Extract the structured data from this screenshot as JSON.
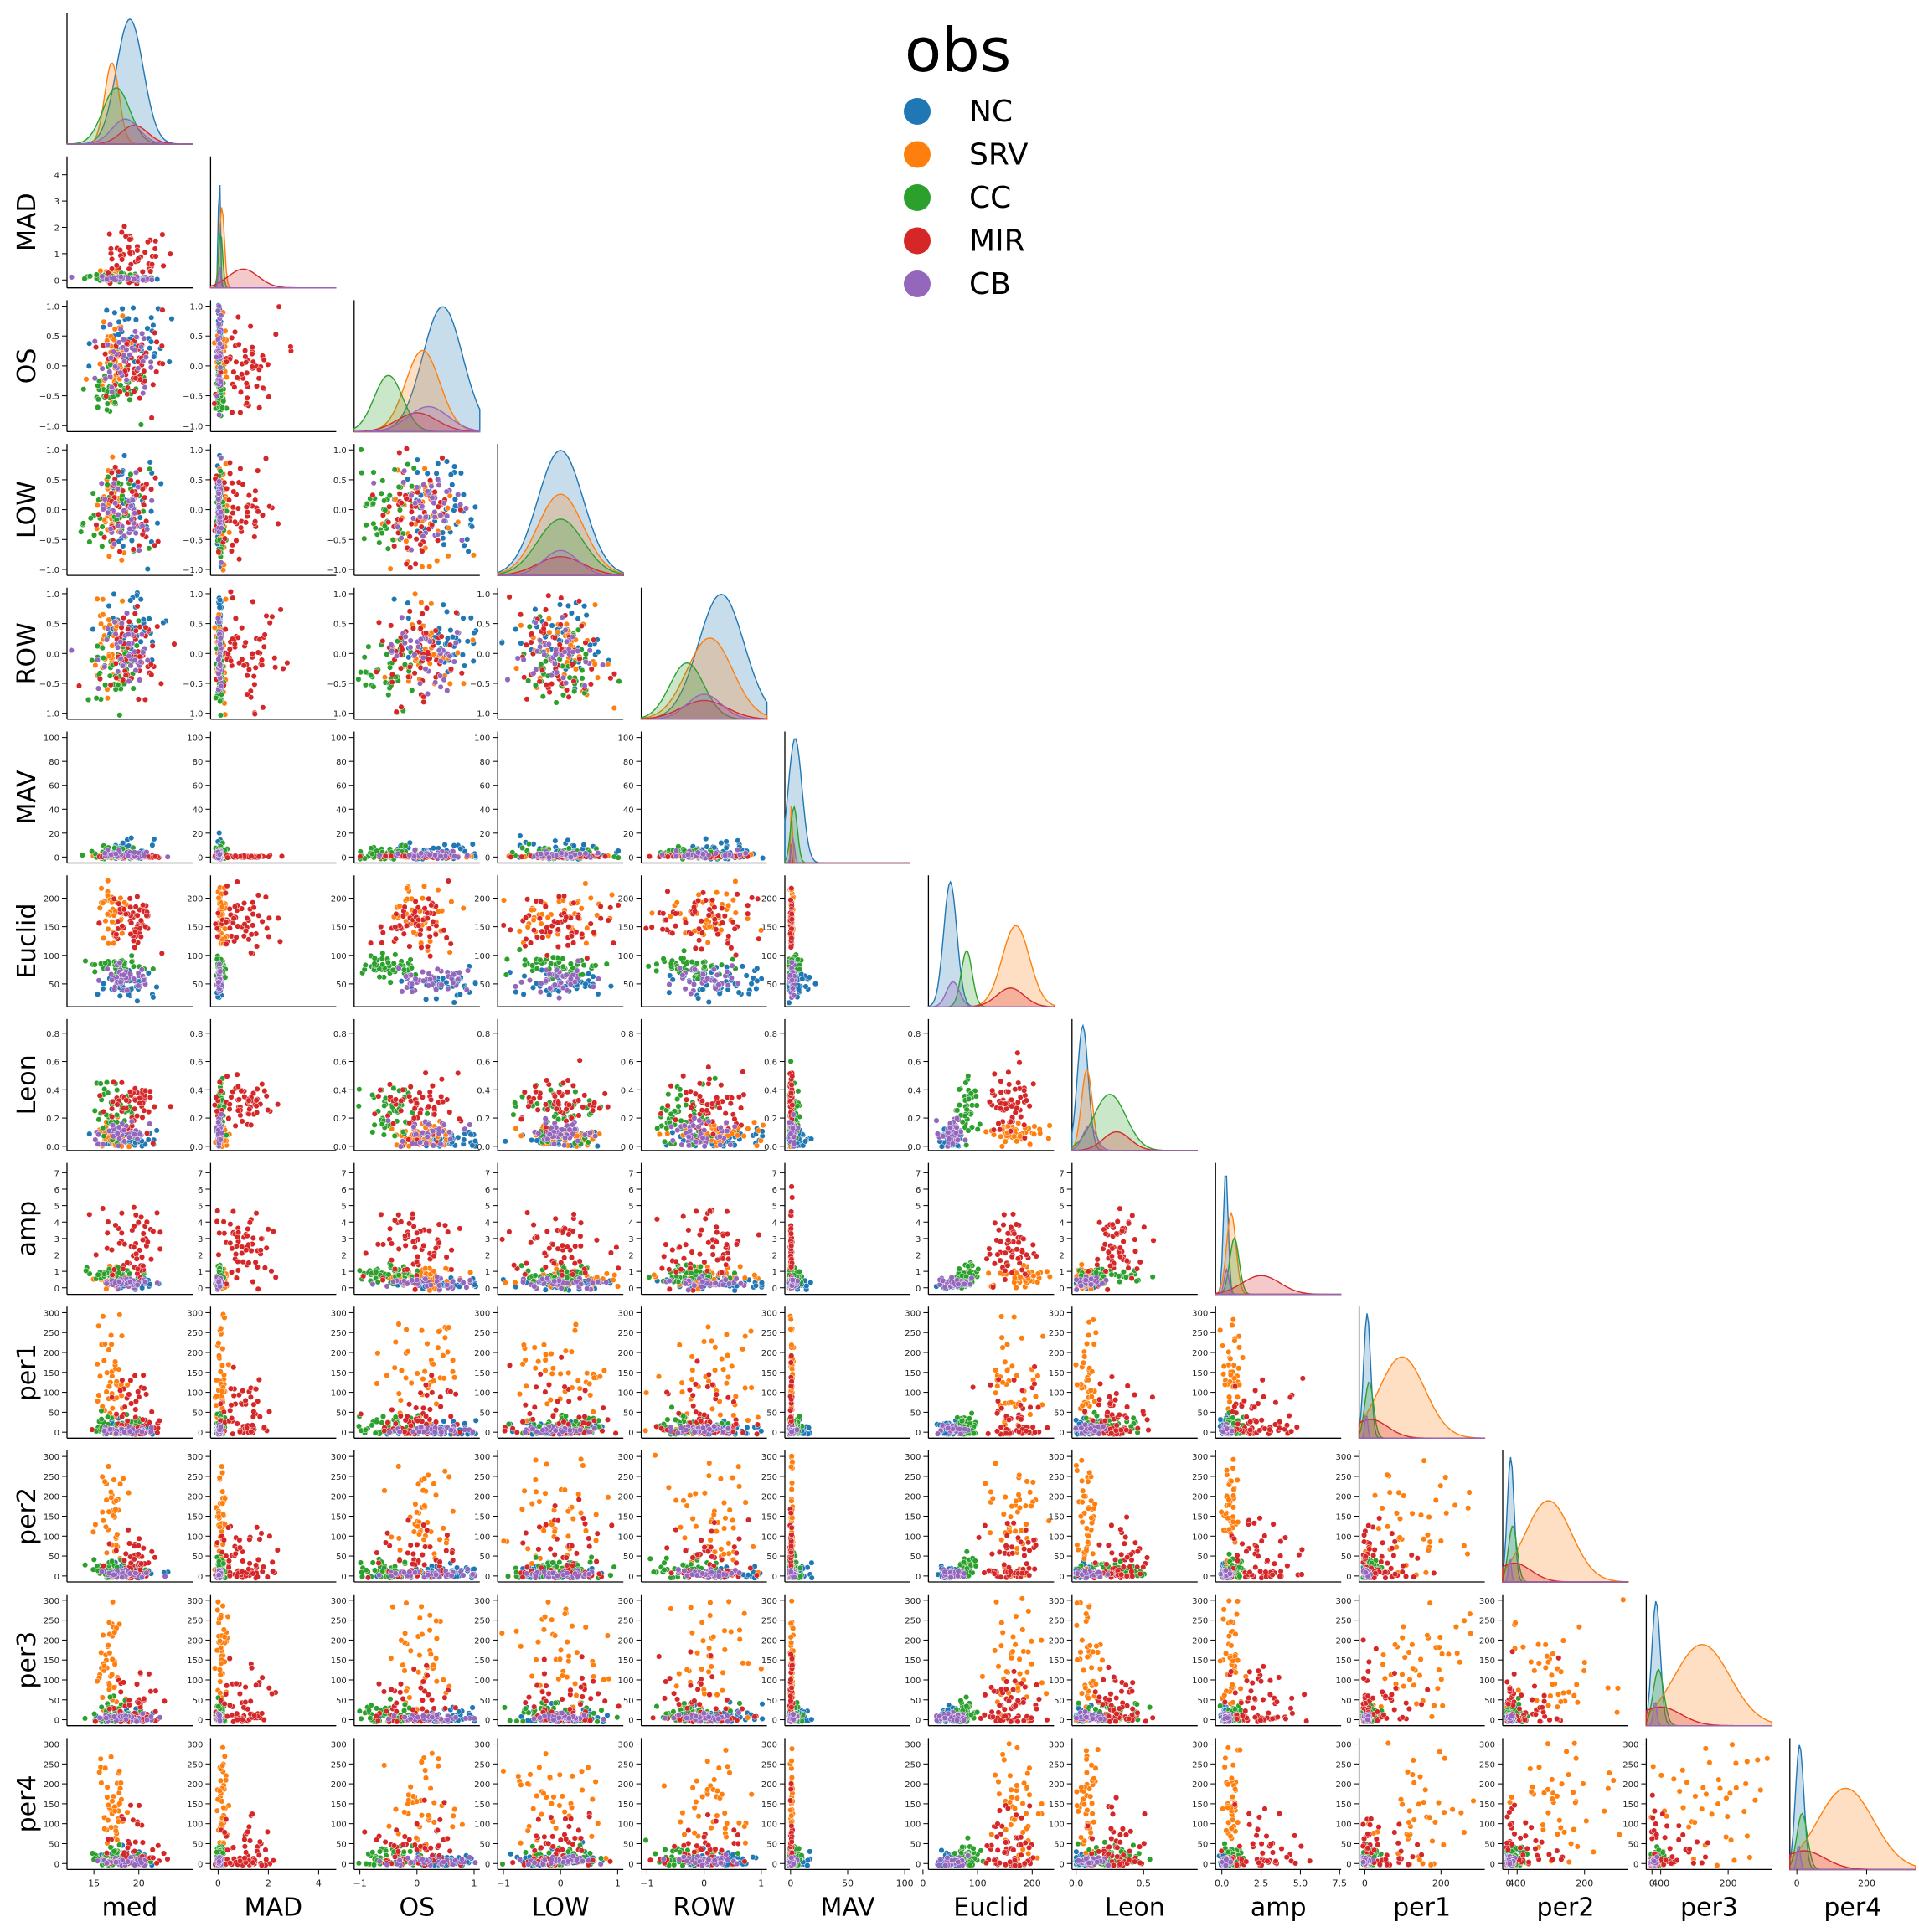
{
  "chart_data": {
    "type": "pairplot",
    "title": "",
    "legend": {
      "title": "obs",
      "placement": "top-center",
      "entries": [
        {
          "name": "NC",
          "color": "#1f77b4"
        },
        {
          "name": "SRV",
          "color": "#ff7f0e"
        },
        {
          "name": "CC",
          "color": "#2ca02c"
        },
        {
          "name": "MIR",
          "color": "#d62728"
        },
        {
          "name": "CB",
          "color": "#9467bd"
        }
      ]
    },
    "corner": true,
    "diagonal": "kde",
    "variables": [
      {
        "name": "med",
        "label": "med",
        "range": [
          12,
          26
        ],
        "ticks": [
          15,
          20
        ],
        "tick_labels": [
          "15",
          "20"
        ]
      },
      {
        "name": "MAD",
        "label": "MAD",
        "range": [
          -0.3,
          4.7
        ],
        "ticks": [
          0,
          1,
          2,
          3,
          4
        ],
        "tick_labels": [
          "0",
          "1",
          "2",
          "3",
          "4"
        ]
      },
      {
        "name": "OS",
        "label": "OS",
        "range": [
          -1.1,
          1.1
        ],
        "ticks": [
          -1.0,
          -0.5,
          0.0,
          0.5,
          1.0
        ],
        "tick_labels": [
          "−1.0",
          "−0.5",
          "0.0",
          "0.5",
          "1.0"
        ]
      },
      {
        "name": "LOW",
        "label": "LOW",
        "range": [
          -1.1,
          1.1
        ],
        "ticks": [
          -1.0,
          -0.5,
          0.0,
          0.5,
          1.0
        ],
        "tick_labels": [
          "−1.0",
          "−0.5",
          "0.0",
          "0.5",
          "1.0"
        ]
      },
      {
        "name": "ROW",
        "label": "ROW",
        "range": [
          -1.1,
          1.1
        ],
        "ticks": [
          -1.0,
          -0.5,
          0.0,
          0.5,
          1.0
        ],
        "tick_labels": [
          "−1.0",
          "−0.5",
          "0.0",
          "0.5",
          "1.0"
        ]
      },
      {
        "name": "MAV",
        "label": "MAV",
        "range": [
          -5,
          105
        ],
        "ticks": [
          0,
          20,
          40,
          60,
          80,
          100
        ],
        "tick_labels": [
          "0",
          "20",
          "40",
          "60",
          "80",
          "100"
        ]
      },
      {
        "name": "Euclid",
        "label": "Euclid",
        "range": [
          10,
          240
        ],
        "ticks": [
          50,
          100,
          150,
          200
        ],
        "tick_labels": [
          "50",
          "100",
          "150",
          "200"
        ]
      },
      {
        "name": "Leon",
        "label": "Leon",
        "range": [
          -0.03,
          0.9
        ],
        "ticks": [
          0.0,
          0.2,
          0.4,
          0.6,
          0.8
        ],
        "tick_labels": [
          "0.0",
          "0.2",
          "0.4",
          "0.6",
          "0.8"
        ]
      },
      {
        "name": "amp",
        "label": "amp",
        "range": [
          -0.4,
          7.6
        ],
        "ticks": [
          0,
          1,
          2,
          3,
          4,
          5,
          6,
          7
        ],
        "tick_labels": [
          "0",
          "1",
          "2",
          "3",
          "4",
          "5",
          "6",
          "7"
        ]
      },
      {
        "name": "per1",
        "label": "per1",
        "range": [
          -15,
          315
        ],
        "ticks": [
          0,
          50,
          100,
          150,
          200,
          250,
          300
        ],
        "tick_labels": [
          "0",
          "50",
          "100",
          "150",
          "200",
          "250",
          "300"
        ]
      },
      {
        "name": "per2",
        "label": "per2",
        "range": [
          -15,
          315
        ],
        "ticks": [
          0,
          50,
          100,
          150,
          200,
          250,
          300
        ],
        "tick_labels": [
          "0",
          "50",
          "100",
          "150",
          "200",
          "250",
          "300"
        ]
      },
      {
        "name": "per3",
        "label": "per3",
        "range": [
          -15,
          315
        ],
        "ticks": [
          0,
          50,
          100,
          150,
          200,
          250,
          300
        ],
        "tick_labels": [
          "0",
          "50",
          "100",
          "150",
          "200",
          "250",
          "300"
        ]
      },
      {
        "name": "per4",
        "label": "per4",
        "range": [
          -15,
          315
        ],
        "ticks": [
          0,
          50,
          100,
          150,
          200,
          250,
          300
        ],
        "tick_labels": [
          "0",
          "50",
          "100",
          "150",
          "200",
          "250",
          "300"
        ]
      }
    ],
    "bottom_x_ticks": [
      {
        "ticks": [
          15,
          20
        ],
        "tick_labels": [
          "15",
          "20"
        ]
      },
      {
        "ticks": [
          0,
          2,
          4
        ],
        "tick_labels": [
          "0",
          "2",
          "4"
        ]
      },
      {
        "ticks": [
          -1,
          0,
          1
        ],
        "tick_labels": [
          "−1",
          "0",
          "1"
        ]
      },
      {
        "ticks": [
          -1,
          0,
          1
        ],
        "tick_labels": [
          "−1",
          "0",
          "1"
        ]
      },
      {
        "ticks": [
          -1,
          0,
          1
        ],
        "tick_labels": [
          "−1",
          "0",
          "1"
        ]
      },
      {
        "ticks": [
          0,
          50,
          100
        ],
        "tick_labels": [
          "0",
          "50",
          "100"
        ]
      },
      {
        "ticks": [
          0,
          100,
          200
        ],
        "tick_labels": [
          "0",
          "100",
          "200"
        ]
      },
      {
        "ticks": [
          0.0,
          0.5
        ],
        "tick_labels": [
          "0.0",
          "0.5"
        ]
      },
      {
        "ticks": [
          0.0,
          2.5,
          5.0,
          7.5
        ],
        "tick_labels": [
          "0.0",
          "2.5",
          "5.0",
          "7.5"
        ]
      },
      {
        "ticks": [
          0,
          200,
          400
        ],
        "tick_labels": [
          "0",
          "200",
          "400"
        ]
      },
      {
        "ticks": [
          0,
          200,
          400
        ],
        "tick_labels": [
          "0",
          "200",
          "400"
        ]
      },
      {
        "ticks": [
          0,
          200
        ],
        "tick_labels": [
          "0",
          "200"
        ]
      },
      {
        "ticks": [
          0,
          200
        ],
        "tick_labels": [
          "0",
          "200"
        ]
      }
    ],
    "diagonal_x_ranges": [
      [
        12,
        26
      ],
      [
        -0.3,
        4.7
      ],
      [
        -1.1,
        1.1
      ],
      [
        -1.1,
        1.1
      ],
      [
        -1.1,
        1.1
      ],
      [
        -5,
        105
      ],
      [
        10,
        240
      ],
      [
        -0.03,
        0.9
      ],
      [
        -0.4,
        7.6
      ],
      [
        -20,
        420
      ],
      [
        -20,
        420
      ],
      [
        -20,
        340
      ],
      [
        -20,
        340
      ]
    ],
    "class_summaries": {
      "NC": {
        "med": [
          19,
          1.5
        ],
        "MAD": [
          0.05,
          0.04
        ],
        "OS": [
          0.45,
          0.35
        ],
        "LOW": [
          0,
          0.4
        ],
        "ROW": [
          0.3,
          0.4
        ],
        "MAV": [
          4,
          6
        ],
        "Euclid": [
          50,
          12
        ],
        "Leon": [
          0.05,
          0.04
        ],
        "amp": [
          0.25,
          0.15
        ],
        "per1": [
          8,
          12
        ],
        "per2": [
          8,
          12
        ],
        "per3": [
          8,
          12
        ],
        "per4": [
          8,
          12
        ]
      },
      "SRV": {
        "med": [
          17,
          0.8
        ],
        "MAD": [
          0.15,
          0.1
        ],
        "OS": [
          0.1,
          0.3
        ],
        "LOW": [
          0,
          0.4
        ],
        "ROW": [
          0.1,
          0.4
        ],
        "MAV": [
          1,
          0.6
        ],
        "Euclid": [
          170,
          25
        ],
        "Leon": [
          0.08,
          0.04
        ],
        "amp": [
          0.6,
          0.3
        ],
        "per1": [
          130,
          80
        ],
        "per2": [
          140,
          80
        ],
        "per3": [
          140,
          80
        ],
        "per4": [
          140,
          80
        ]
      },
      "CC": {
        "med": [
          17.5,
          1.5
        ],
        "MAD": [
          0.1,
          0.08
        ],
        "OS": [
          -0.5,
          0.25
        ],
        "LOW": [
          0,
          0.4
        ],
        "ROW": [
          -0.3,
          0.3
        ],
        "MAV": [
          3,
          3
        ],
        "Euclid": [
          80,
          10
        ],
        "Leon": [
          0.25,
          0.12
        ],
        "amp": [
          0.8,
          0.3
        ],
        "per1": [
          15,
          15
        ],
        "per2": [
          15,
          15
        ],
        "per3": [
          15,
          15
        ],
        "per4": [
          15,
          15
        ]
      },
      "MIR": {
        "med": [
          19.5,
          1.5
        ],
        "MAD": [
          1.0,
          0.6
        ],
        "OS": [
          0.0,
          0.35
        ],
        "LOW": [
          0,
          0.4
        ],
        "ROW": [
          0.0,
          0.4
        ],
        "MAV": [
          0.5,
          0.5
        ],
        "Euclid": [
          160,
          25
        ],
        "Leon": [
          0.3,
          0.1
        ],
        "amp": [
          2.5,
          1.2
        ],
        "per1": [
          20,
          60
        ],
        "per2": [
          20,
          60
        ],
        "per3": [
          20,
          60
        ],
        "per4": [
          20,
          60
        ]
      },
      "CB": {
        "med": [
          18.5,
          1.5
        ],
        "MAD": [
          0.05,
          0.04
        ],
        "OS": [
          0.2,
          0.35
        ],
        "LOW": [
          0,
          0.3
        ],
        "ROW": [
          0.0,
          0.3
        ],
        "MAV": [
          2,
          1.5
        ],
        "Euclid": [
          55,
          12
        ],
        "Leon": [
          0.1,
          0.05
        ],
        "amp": [
          0.3,
          0.15
        ],
        "per1": [
          5,
          5
        ],
        "per2": [
          5,
          5
        ],
        "per3": [
          5,
          5
        ],
        "per4": [
          5,
          5
        ]
      }
    }
  }
}
